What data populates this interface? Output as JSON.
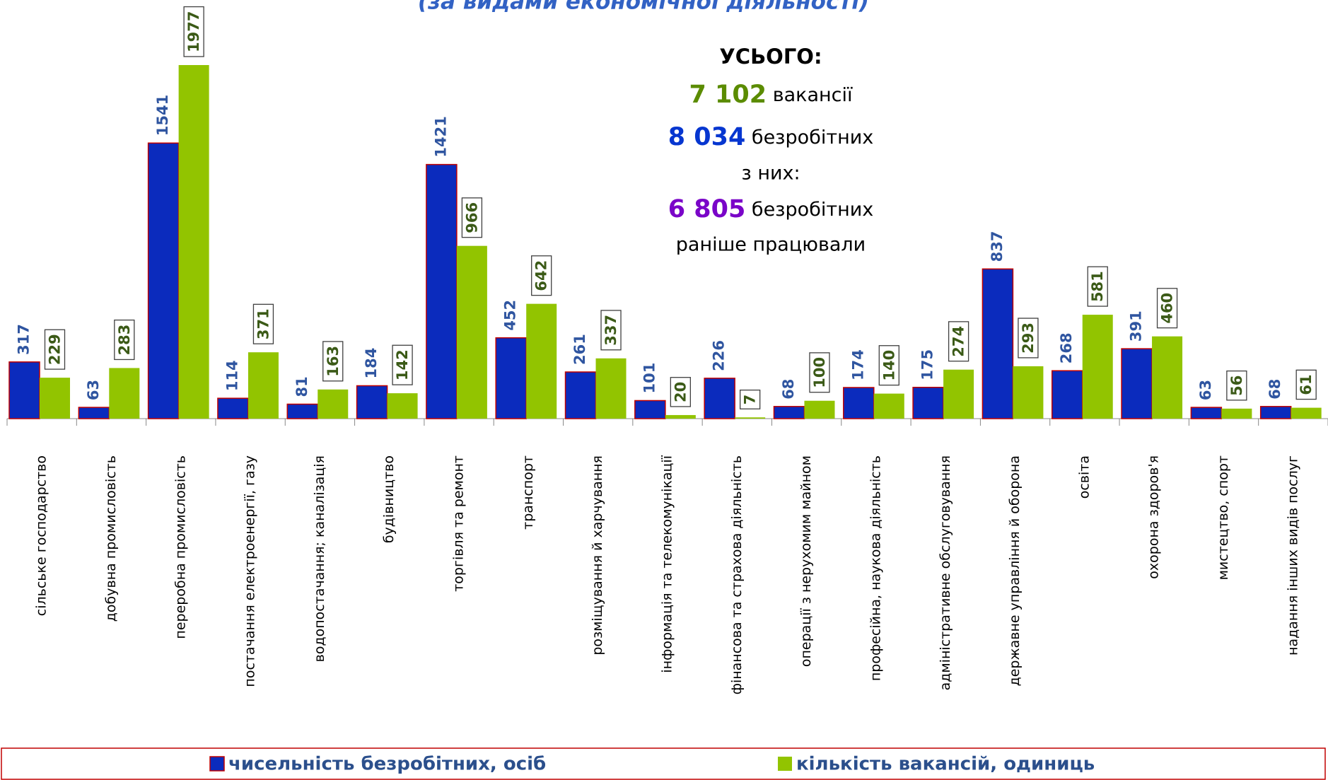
{
  "chart_data": {
    "type": "bar",
    "subtitle": "(за видами економічної діяльності)",
    "summary": {
      "heading": "УСЬОГО:",
      "vacancies": "7 102",
      "vacancies_text": "вакансії",
      "unemployed": "8 034",
      "unemployed_text": "безробітних",
      "of_them": "з них:",
      "worked": "6 805",
      "worked_text": "безробітних",
      "worked_text2": "раніше працювали"
    },
    "categories": [
      "сільське господарство",
      "добувна промисловість",
      "переробна промисловість",
      "постачання електроенергії, газу",
      "водопостачання; каналізація",
      "будівництво",
      "торгівля та ремонт",
      "транспорт",
      "розміщування й харчування",
      "інформація та телекомунікації",
      "фінансова та страхова діяльність",
      "операції з нерухомим майном",
      "професійна, наукова  діяльність",
      "адміністративне обслуговування",
      "державне управління й оборона",
      "освіта",
      "охорона здоров'я",
      "мистецтво, спорт",
      "надання інших видів послуг"
    ],
    "series": [
      {
        "name": "чисельність безробітних, осіб",
        "color": "#0b2bbd",
        "values": [
          317,
          63,
          1541,
          114,
          81,
          184,
          1421,
          452,
          261,
          101,
          226,
          68,
          174,
          175,
          837,
          268,
          391,
          63,
          68
        ]
      },
      {
        "name": "кількість вакансій, одиниць",
        "color": "#92c400",
        "values": [
          229,
          283,
          1977,
          371,
          163,
          142,
          966,
          642,
          337,
          20,
          7,
          100,
          140,
          274,
          293,
          581,
          460,
          56,
          61
        ]
      }
    ]
  }
}
